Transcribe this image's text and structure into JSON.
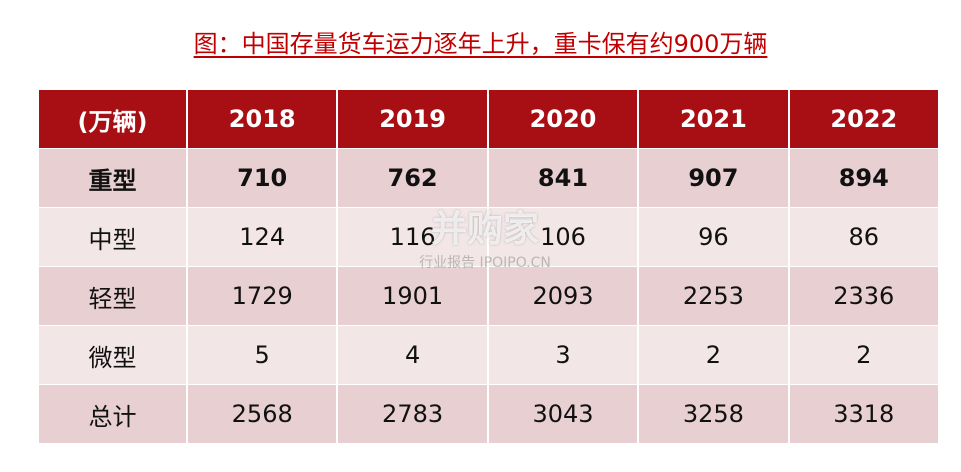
{
  "title": "图：中国存量货车运力逐年上升，重卡保有约900万辆",
  "table": {
    "header": [
      "(万辆)",
      "2018",
      "2019",
      "2020",
      "2021",
      "2022"
    ],
    "rows": [
      [
        "重型",
        710,
        762,
        841,
        907,
        894
      ],
      [
        "中型",
        124,
        116,
        106,
        96,
        86
      ],
      [
        "轻型",
        1729,
        1901,
        2093,
        2253,
        2336
      ],
      [
        "微型",
        5,
        4,
        3,
        2,
        2
      ],
      [
        "总计",
        2568,
        2783,
        3043,
        3258,
        3318
      ]
    ]
  },
  "watermark": {
    "title": "并购家",
    "subtitle": "行业报告 IPOIPO.CN"
  }
}
